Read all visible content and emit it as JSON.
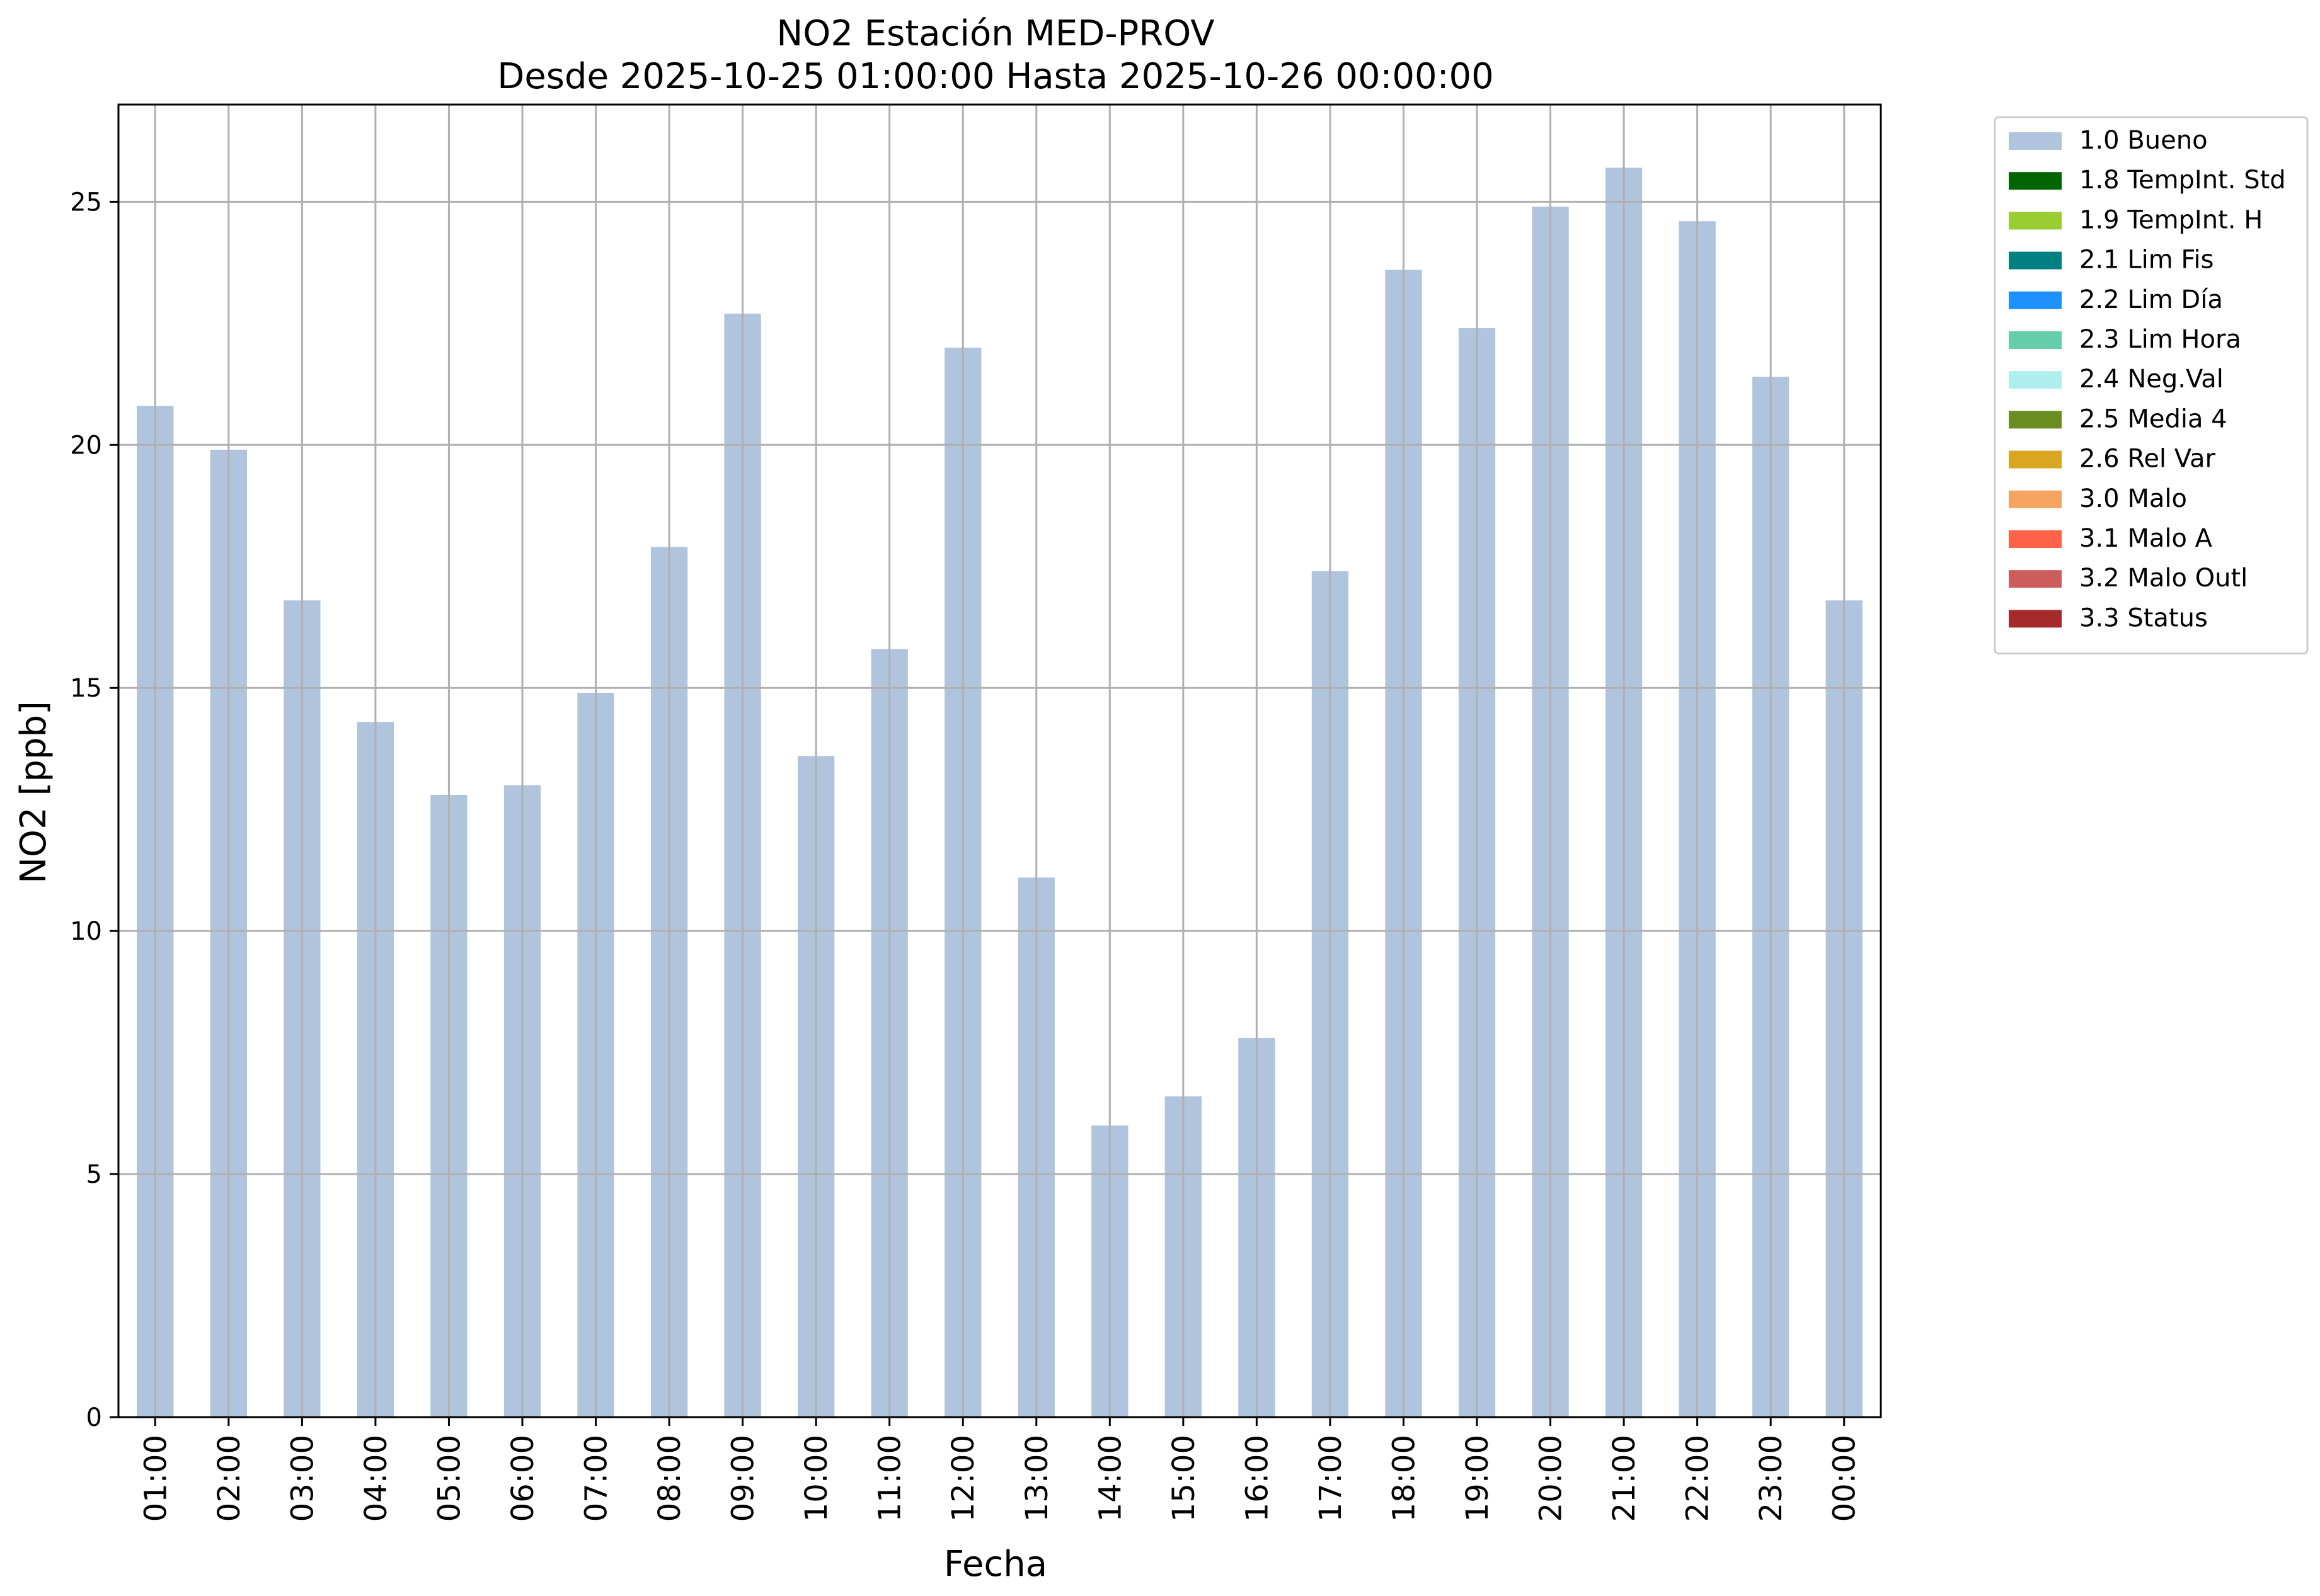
{
  "chart_data": {
    "type": "bar",
    "title": "NO2 Estación MED-PROV",
    "subtitle": "Desde 2025-10-25 01:00:00 Hasta 2025-10-26 00:00:00",
    "xlabel": "Fecha",
    "ylabel": "NO2 [ppb]",
    "ylim": [
      0,
      27
    ],
    "yticks": [
      0,
      5,
      10,
      15,
      20,
      25
    ],
    "grid": true,
    "legend_position": "outside-top-right",
    "categories": [
      "01:00",
      "02:00",
      "03:00",
      "04:00",
      "05:00",
      "06:00",
      "07:00",
      "08:00",
      "09:00",
      "10:00",
      "11:00",
      "12:00",
      "13:00",
      "14:00",
      "15:00",
      "16:00",
      "17:00",
      "18:00",
      "19:00",
      "20:00",
      "21:00",
      "22:00",
      "23:00",
      "00:00"
    ],
    "series": [
      {
        "name": "1.0 Bueno",
        "color": "#b0c4de",
        "values": [
          20.8,
          19.9,
          16.8,
          14.3,
          12.8,
          13.0,
          14.9,
          17.9,
          22.7,
          13.6,
          15.8,
          22.0,
          11.1,
          6.0,
          6.6,
          7.8,
          17.4,
          23.6,
          22.4,
          24.9,
          25.7,
          24.6,
          21.4,
          16.8
        ]
      }
    ],
    "legend": [
      {
        "label": "1.0 Bueno",
        "color": "#b0c4de"
      },
      {
        "label": "1.8 TempInt. Std",
        "color": "#006400"
      },
      {
        "label": "1.9 TempInt. H",
        "color": "#9acd32"
      },
      {
        "label": "2.1 Lim Fis",
        "color": "#008080"
      },
      {
        "label": "2.2 Lim Día",
        "color": "#1e90ff"
      },
      {
        "label": "2.3 Lim Hora",
        "color": "#66cdaa"
      },
      {
        "label": "2.4 Neg.Val",
        "color": "#afeeee"
      },
      {
        "label": "2.5 Media 4",
        "color": "#6b8e23"
      },
      {
        "label": "2.6 Rel Var",
        "color": "#daa520"
      },
      {
        "label": "3.0 Malo",
        "color": "#f4a460"
      },
      {
        "label": "3.1 Malo A",
        "color": "#ff6347"
      },
      {
        "label": "3.2 Malo Outl",
        "color": "#cd5c5c"
      },
      {
        "label": "3.3 Status",
        "color": "#a52a2a"
      }
    ]
  }
}
